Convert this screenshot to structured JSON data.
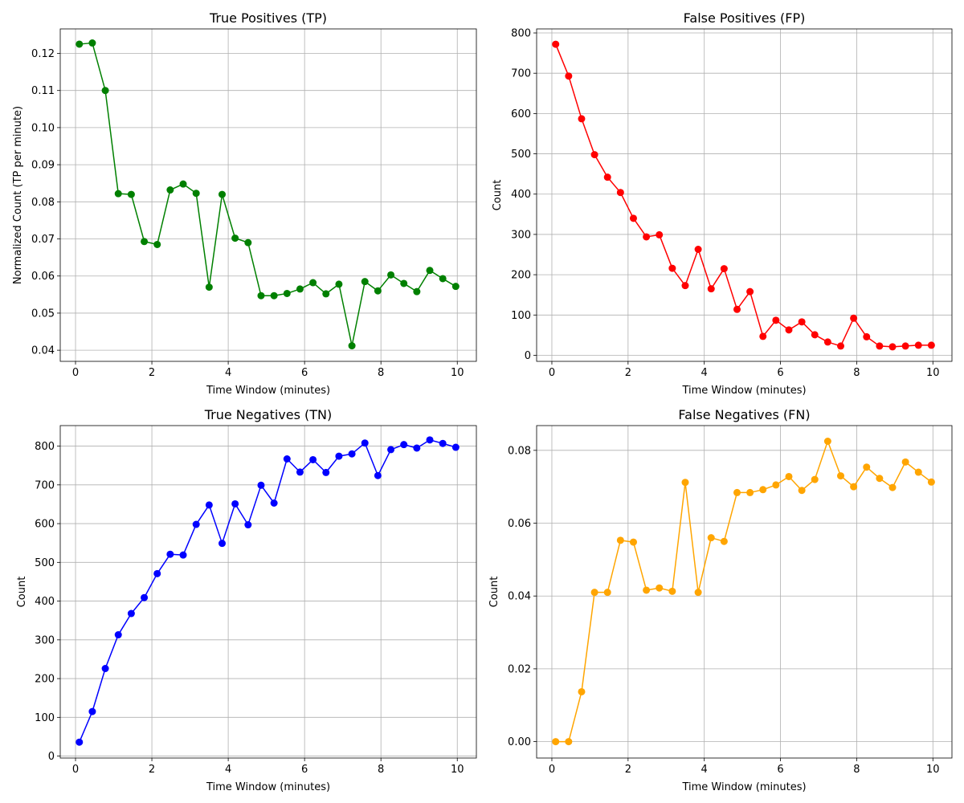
{
  "chart_data": [
    {
      "type": "line",
      "title": "True Positives (TP)",
      "xlabel": "Time Window (minutes)",
      "ylabel": "Normalized Count (TP per minute)",
      "color": "#008000",
      "marker": "circle",
      "grid": true,
      "xlim": [
        -0.4,
        10.5
      ],
      "ylim": [
        0.037,
        0.1266
      ],
      "xticks": [
        0,
        2,
        4,
        6,
        8,
        10
      ],
      "yticks": [
        0.04,
        0.05,
        0.06,
        0.07,
        0.08,
        0.09,
        0.1,
        0.11,
        0.12
      ],
      "xtick_labels": [
        "0",
        "2",
        "4",
        "6",
        "8",
        "10"
      ],
      "ytick_labels": [
        "0.04",
        "0.05",
        "0.06",
        "0.07",
        "0.08",
        "0.09",
        "0.10",
        "0.11",
        "0.12"
      ],
      "x": [
        0.1,
        0.44,
        0.78,
        1.12,
        1.46,
        1.8,
        2.14,
        2.48,
        2.82,
        3.16,
        3.5,
        3.84,
        4.18,
        4.52,
        4.86,
        5.2,
        5.54,
        5.88,
        6.22,
        6.56,
        6.9,
        7.24,
        7.58,
        7.92,
        8.26,
        8.6,
        8.94,
        9.28,
        9.62,
        9.96
      ],
      "y": [
        0.1225,
        0.1228,
        0.11,
        0.0822,
        0.082,
        0.0693,
        0.0685,
        0.0832,
        0.0848,
        0.0823,
        0.057,
        0.082,
        0.0702,
        0.069,
        0.0547,
        0.0547,
        0.0553,
        0.0565,
        0.0582,
        0.0552,
        0.0578,
        0.0412,
        0.0585,
        0.056,
        0.0603,
        0.058,
        0.0558,
        0.0615,
        0.0593,
        0.0572
      ]
    },
    {
      "type": "line",
      "title": "False Positives (FP)",
      "xlabel": "Time Window (minutes)",
      "ylabel": "Count",
      "color": "#ff0000",
      "marker": "circle",
      "grid": true,
      "xlim": [
        -0.4,
        10.5
      ],
      "ylim": [
        -15,
        810
      ],
      "xticks": [
        0,
        2,
        4,
        6,
        8,
        10
      ],
      "yticks": [
        0,
        100,
        200,
        300,
        400,
        500,
        600,
        700,
        800
      ],
      "xtick_labels": [
        "0",
        "2",
        "4",
        "6",
        "8",
        "10"
      ],
      "ytick_labels": [
        "0",
        "100",
        "200",
        "300",
        "400",
        "500",
        "600",
        "700",
        "800"
      ],
      "x": [
        0.1,
        0.44,
        0.78,
        1.12,
        1.46,
        1.8,
        2.14,
        2.48,
        2.82,
        3.16,
        3.5,
        3.84,
        4.18,
        4.52,
        4.86,
        5.2,
        5.54,
        5.88,
        6.22,
        6.56,
        6.9,
        7.24,
        7.58,
        7.92,
        8.26,
        8.6,
        8.94,
        9.28,
        9.62,
        9.96
      ],
      "y": [
        772,
        693,
        587,
        498,
        442,
        404,
        340,
        294,
        299,
        216,
        173,
        263,
        165,
        215,
        114,
        158,
        47,
        87,
        63,
        83,
        51,
        33,
        23,
        92,
        46,
        23,
        21,
        23,
        25,
        25
      ]
    },
    {
      "type": "line",
      "title": "True Negatives (TN)",
      "xlabel": "Time Window (minutes)",
      "ylabel": "Count",
      "color": "#0000ff",
      "marker": "circle",
      "grid": true,
      "xlim": [
        -0.4,
        10.5
      ],
      "ylim": [
        -5,
        853
      ],
      "xticks": [
        0,
        2,
        4,
        6,
        8,
        10
      ],
      "yticks": [
        0,
        100,
        200,
        300,
        400,
        500,
        600,
        700,
        800
      ],
      "xtick_labels": [
        "0",
        "2",
        "4",
        "6",
        "8",
        "10"
      ],
      "ytick_labels": [
        "0",
        "100",
        "200",
        "300",
        "400",
        "500",
        "600",
        "700",
        "800"
      ],
      "x": [
        0.1,
        0.44,
        0.78,
        1.12,
        1.46,
        1.8,
        2.14,
        2.48,
        2.82,
        3.16,
        3.5,
        3.84,
        4.18,
        4.52,
        4.86,
        5.2,
        5.54,
        5.88,
        6.22,
        6.56,
        6.9,
        7.24,
        7.58,
        7.92,
        8.26,
        8.6,
        8.94,
        9.28,
        9.62,
        9.96
      ],
      "y": [
        36,
        115,
        226,
        313,
        368,
        409,
        471,
        521,
        519,
        598,
        648,
        549,
        651,
        597,
        699,
        653,
        767,
        733,
        765,
        732,
        774,
        780,
        808,
        724,
        791,
        804,
        795,
        816,
        807,
        797
      ]
    },
    {
      "type": "line",
      "title": "False Negatives (FN)",
      "xlabel": "Time Window (minutes)",
      "ylabel": "Count",
      "color": "#ffa500",
      "marker": "circle",
      "grid": true,
      "xlim": [
        -0.4,
        10.5
      ],
      "ylim": [
        -0.0045,
        0.0868
      ],
      "xticks": [
        0,
        2,
        4,
        6,
        8,
        10
      ],
      "yticks": [
        0.0,
        0.02,
        0.04,
        0.06,
        0.08
      ],
      "xtick_labels": [
        "0",
        "2",
        "4",
        "6",
        "8",
        "10"
      ],
      "ytick_labels": [
        "0.00",
        "0.02",
        "0.04",
        "0.06",
        "0.08"
      ],
      "x": [
        0.1,
        0.44,
        0.78,
        1.12,
        1.46,
        1.8,
        2.14,
        2.48,
        2.82,
        3.16,
        3.5,
        3.84,
        4.18,
        4.52,
        4.86,
        5.2,
        5.54,
        5.88,
        6.22,
        6.56,
        6.9,
        7.24,
        7.58,
        7.92,
        8.26,
        8.6,
        8.94,
        9.28,
        9.62,
        9.96
      ],
      "y": [
        0.0,
        0.0,
        0.0137,
        0.041,
        0.041,
        0.0553,
        0.0548,
        0.0416,
        0.0422,
        0.0413,
        0.0712,
        0.041,
        0.056,
        0.055,
        0.0684,
        0.0684,
        0.0692,
        0.0705,
        0.0728,
        0.069,
        0.072,
        0.0825,
        0.073,
        0.07,
        0.0754,
        0.0723,
        0.0698,
        0.0768,
        0.074,
        0.0713
      ]
    }
  ]
}
